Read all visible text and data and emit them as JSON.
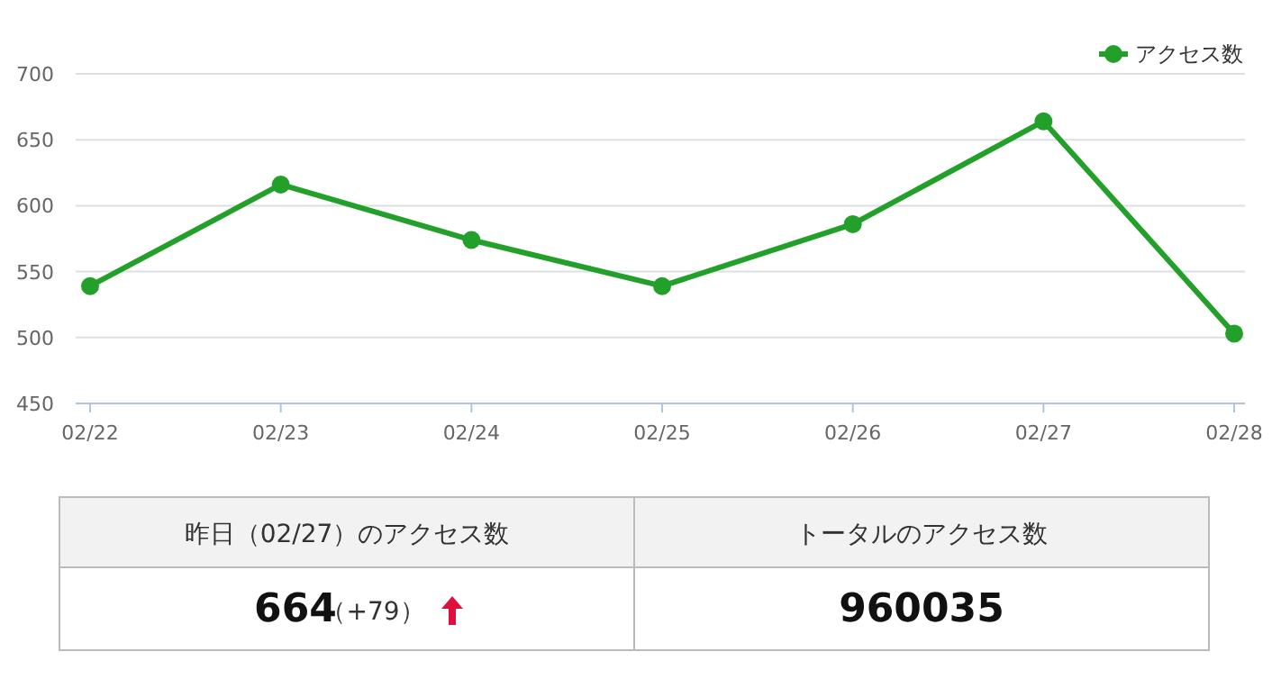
{
  "chart_data": [
    {
      "type": "line",
      "categories": [
        "02/22",
        "02/23",
        "02/24",
        "02/25",
        "02/26",
        "02/27",
        "02/28"
      ],
      "series": [
        {
          "name": "アクセス数",
          "color": "#22a02a",
          "values": [
            539,
            616,
            574,
            539,
            586,
            664,
            503
          ]
        }
      ],
      "ylim": [
        450,
        700
      ],
      "yticks": [
        450,
        500,
        550,
        600,
        650,
        700
      ],
      "grid": "y",
      "legend": "top right",
      "marker": "circle",
      "line_style": "solid"
    },
    {
      "type": "other",
      "annotations": [
        "昨日（02/27）のアクセス数",
        "トータルのアクセス数",
        "664",
        "（+79）",
        "960035"
      ]
    }
  ]
}
